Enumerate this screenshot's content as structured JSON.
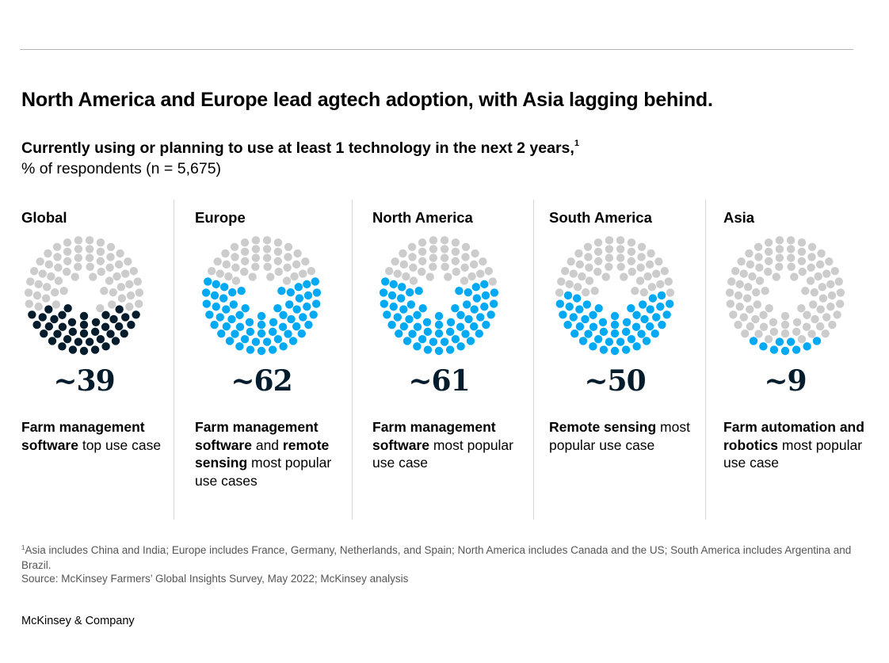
{
  "title": "North America and Europe lead agtech adoption, with Asia lagging behind.",
  "subtitle": "Currently using or planning to use at least 1 technology in the next 2 years,",
  "subtitle_footnote_mark": "1",
  "unit_label": "% of respondents (n = 5,675)",
  "colors": {
    "inactive": "#cccccc",
    "global": "#051c2c",
    "region": "#00a9f4"
  },
  "chart_data": {
    "type": "dot-gauge",
    "title": "Currently using or planning to use at least 1 technology in the next 2 years",
    "unit": "% of respondents",
    "n": 5675,
    "dots_per_chart": 100,
    "series": [
      {
        "name": "Global",
        "value": 39,
        "value_label": "~39",
        "color_key": "global",
        "desc": [
          {
            "text": "Farm management software",
            "bold": true
          },
          {
            "text": " top use case",
            "bold": false
          }
        ]
      },
      {
        "name": "Europe",
        "value": 62,
        "value_label": "~62",
        "color_key": "region",
        "desc": [
          {
            "text": "Farm management software",
            "bold": true
          },
          {
            "text": " and ",
            "bold": false
          },
          {
            "text": "remote sensing",
            "bold": true
          },
          {
            "text": " most popular use cases",
            "bold": false
          }
        ]
      },
      {
        "name": "North America",
        "value": 61,
        "value_label": "~61",
        "color_key": "region",
        "desc": [
          {
            "text": "Farm management software",
            "bold": true
          },
          {
            "text": " most popular use case",
            "bold": false
          }
        ]
      },
      {
        "name": "South America",
        "value": 50,
        "value_label": "~50",
        "color_key": "region",
        "desc": [
          {
            "text": "Remote sensing",
            "bold": true
          },
          {
            "text": " most popular use case",
            "bold": false
          }
        ]
      },
      {
        "name": "Asia",
        "value": 9,
        "value_label": "~9",
        "color_key": "region",
        "desc": [
          {
            "text": "Farm automation and robotics",
            "bold": true
          },
          {
            "text": " most popular use case",
            "bold": false
          }
        ]
      }
    ]
  },
  "footnote_mark": "1",
  "footnote": "Asia includes China and India; Europe includes France, Germany, Netherlands, and Spain; North America includes Canada and the US; South America includes Argentina and Brazil.",
  "source": "Source: McKinsey Farmers’ Global Insights Survey, May 2022; McKinsey analysis",
  "brand": "McKinsey & Company"
}
